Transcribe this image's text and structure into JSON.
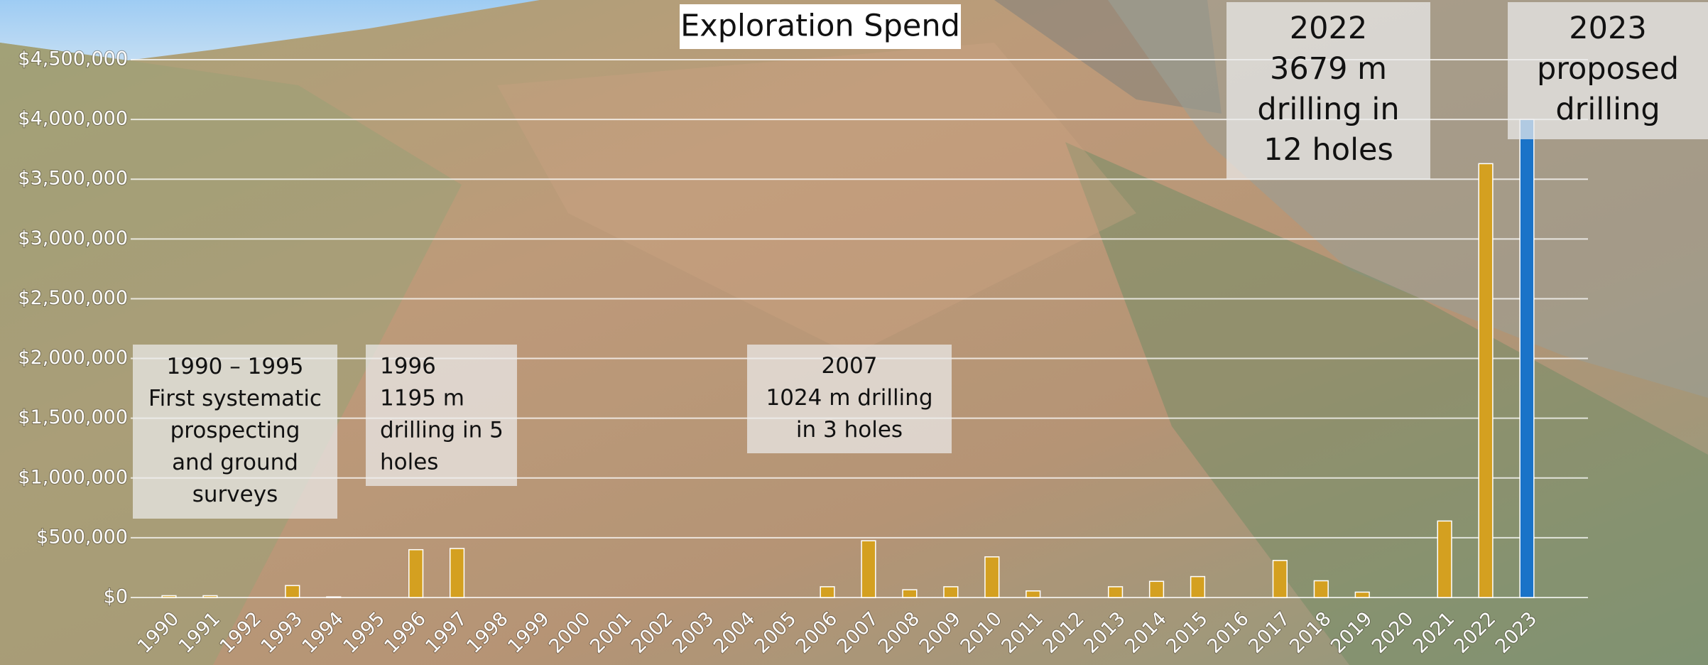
{
  "chart_data": {
    "type": "bar",
    "title": "Exploration Spend",
    "categories": [
      "1990",
      "1991",
      "1992",
      "1993",
      "1994",
      "1995",
      "1996",
      "1997",
      "1998",
      "1999",
      "2000",
      "2001",
      "2002",
      "2003",
      "2004",
      "2005",
      "2006",
      "2007",
      "2008",
      "2009",
      "2010",
      "2011",
      "2012",
      "2013",
      "2014",
      "2015",
      "2016",
      "2017",
      "2018",
      "2019",
      "2020",
      "2021",
      "2022",
      "2023"
    ],
    "values": [
      15000,
      15000,
      0,
      100000,
      5000,
      0,
      400000,
      410000,
      0,
      0,
      0,
      0,
      0,
      0,
      0,
      0,
      90000,
      475000,
      65000,
      90000,
      340000,
      55000,
      0,
      90000,
      135000,
      175000,
      0,
      310000,
      140000,
      45000,
      0,
      640000,
      3630000,
      4000000
    ],
    "colors": [
      "#d4a020",
      "#d4a020",
      "#d4a020",
      "#d4a020",
      "#d4a020",
      "#d4a020",
      "#d4a020",
      "#d4a020",
      "#d4a020",
      "#d4a020",
      "#d4a020",
      "#d4a020",
      "#d4a020",
      "#d4a020",
      "#d4a020",
      "#d4a020",
      "#d4a020",
      "#d4a020",
      "#d4a020",
      "#d4a020",
      "#d4a020",
      "#d4a020",
      "#d4a020",
      "#d4a020",
      "#d4a020",
      "#d4a020",
      "#d4a020",
      "#d4a020",
      "#d4a020",
      "#d4a020",
      "#d4a020",
      "#d4a020",
      "#d4a020",
      "#1a73c8"
    ],
    "ylim": [
      0,
      4500000
    ],
    "yticks": [
      {
        "value": 0,
        "label": "$0"
      },
      {
        "value": 500000,
        "label": "$500,000"
      },
      {
        "value": 1000000,
        "label": "$1,000,000"
      },
      {
        "value": 1500000,
        "label": "$1,500,000"
      },
      {
        "value": 2000000,
        "label": "$2,000,000"
      },
      {
        "value": 2500000,
        "label": "$2,500,000"
      },
      {
        "value": 3000000,
        "label": "$3,000,000"
      },
      {
        "value": 3500000,
        "label": "$3,500,000"
      },
      {
        "value": 4000000,
        "label": "$4,000,000"
      },
      {
        "value": 4500000,
        "label": "$4,500,000"
      }
    ],
    "grid": true,
    "annotations": [
      {
        "lines": [
          "1990 – 1995",
          "First systematic",
          "prospecting",
          "and ground",
          "surveys"
        ]
      },
      {
        "lines": [
          "1996",
          "1195 m",
          "drilling in 5",
          "holes"
        ]
      },
      {
        "lines": [
          "2007",
          "1024 m drilling",
          "in 3 holes"
        ]
      },
      {
        "lines": [
          "2022",
          "3679 m",
          "drilling in",
          "12 holes"
        ]
      },
      {
        "lines": [
          "2023",
          {
            "text": "proposed",
            "color": "#1a73c8"
          },
          "drilling"
        ]
      }
    ]
  }
}
